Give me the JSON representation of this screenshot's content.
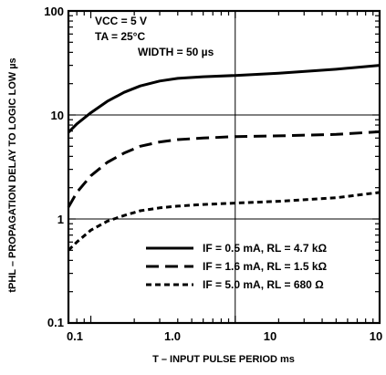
{
  "chart_data": {
    "type": "line",
    "xscale": "log",
    "yscale": "log",
    "xlim": [
      0.07,
      10
    ],
    "ylim": [
      0.1,
      100
    ],
    "grid": true,
    "xlabel": "T – INPUT PULSE PERIOD ms",
    "ylabel": "tPHL – PROPAGATION DELAY TO LOGIC LOW µs",
    "x_ticks": [
      "0.1",
      "1.0",
      "10",
      "10"
    ],
    "y_ticks": [
      "100",
      "10",
      "1",
      "0.1"
    ],
    "conditions": [
      "VCC = 5 V",
      "TA = 25°C",
      "WIDTH = 50 µs"
    ],
    "legend_position": "bottom-right",
    "series": [
      {
        "name": "IF = 0.5 mA, RL = 4.7 kΩ",
        "line_style": "solid",
        "x": [
          0.07,
          0.08,
          0.1,
          0.13,
          0.17,
          0.22,
          0.3,
          0.4,
          0.6,
          1.0,
          2.0,
          5.0,
          10
        ],
        "y": [
          6.8,
          8.2,
          10.5,
          13.5,
          16.5,
          19,
          21.2,
          22.5,
          23.3,
          24,
          25.2,
          27.5,
          30
        ]
      },
      {
        "name": "IF = 1.6 mA, RL = 1.5 kΩ",
        "line_style": "dashed",
        "x": [
          0.07,
          0.08,
          0.1,
          0.13,
          0.17,
          0.22,
          0.3,
          0.4,
          0.6,
          1.0,
          2.0,
          5.0,
          10
        ],
        "y": [
          1.3,
          1.8,
          2.6,
          3.5,
          4.3,
          5.0,
          5.5,
          5.8,
          6.0,
          6.2,
          6.3,
          6.5,
          6.9
        ]
      },
      {
        "name": "IF = 5.0 mA, RL = 680 Ω",
        "line_style": "short-dashed",
        "x": [
          0.07,
          0.08,
          0.1,
          0.13,
          0.17,
          0.22,
          0.3,
          0.4,
          0.6,
          1.0,
          2.0,
          5.0,
          10
        ],
        "y": [
          0.5,
          0.6,
          0.78,
          0.95,
          1.08,
          1.2,
          1.28,
          1.33,
          1.38,
          1.42,
          1.48,
          1.6,
          1.8
        ]
      }
    ]
  }
}
